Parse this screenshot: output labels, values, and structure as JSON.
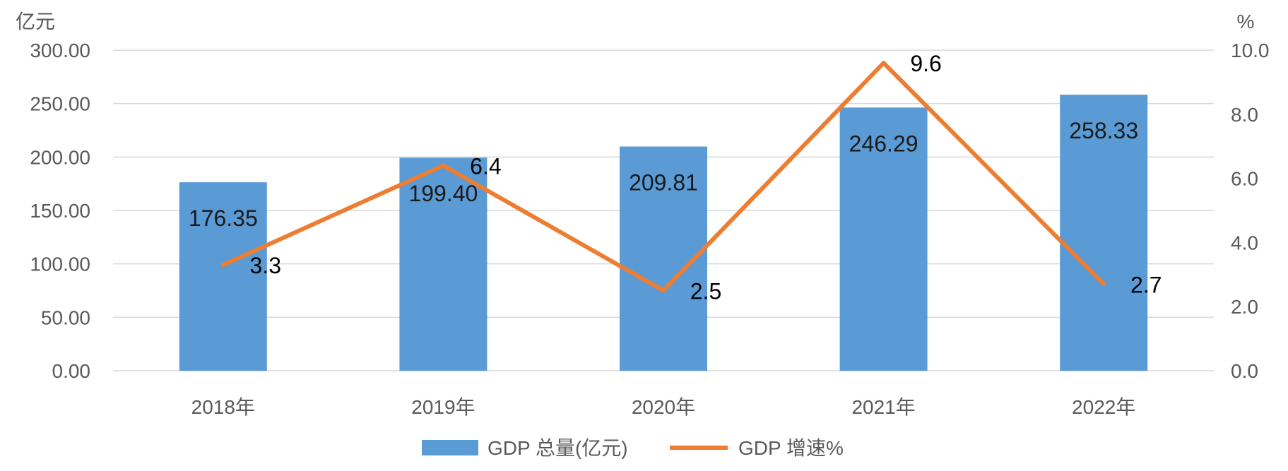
{
  "chart_data": {
    "type": "bar",
    "categories": [
      "2018年",
      "2019年",
      "2020年",
      "2021年",
      "2022年"
    ],
    "series": [
      {
        "name": "GDP 总量(亿元)",
        "type": "bar",
        "axis": "left",
        "values": [
          176.35,
          199.4,
          209.81,
          246.29,
          258.33
        ],
        "labels": [
          "176.35",
          "199.40",
          "209.81",
          "246.29",
          "258.33"
        ]
      },
      {
        "name": "GDP 增速%",
        "type": "line",
        "axis": "right",
        "values": [
          3.3,
          6.4,
          2.5,
          9.6,
          2.7
        ],
        "labels": [
          "3.3",
          "6.4",
          "2.5",
          "9.6",
          "2.7"
        ]
      }
    ],
    "left_axis": {
      "unit": "亿元",
      "ylim": [
        0,
        300
      ],
      "ticks": [
        "0.00",
        "50.00",
        "100.00",
        "150.00",
        "200.00",
        "250.00",
        "300.00"
      ]
    },
    "right_axis": {
      "unit": "%",
      "ylim": [
        0,
        10
      ],
      "ticks": [
        "0.0",
        "2.0",
        "4.0",
        "6.0",
        "8.0",
        "10.0"
      ]
    },
    "grid": true,
    "legend_position": "bottom"
  },
  "colors": {
    "bar": "#5b9bd5",
    "line": "#ed7d31",
    "grid": "#d9d9d9",
    "axis_text": "#595959"
  }
}
